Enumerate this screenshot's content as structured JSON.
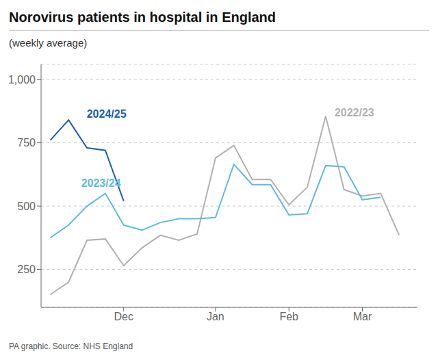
{
  "chart_data": {
    "type": "line",
    "title": "Norovirus patients in hospital in England",
    "subtitle": "(weekly average)",
    "source": "PA graphic. Source: NHS England",
    "xlim": [
      -0.5,
      20.0
    ],
    "xticks": [
      {
        "value": 4,
        "label": "Dec"
      },
      {
        "value": 9,
        "label": "Jan"
      },
      {
        "value": 13,
        "label": "Feb"
      },
      {
        "value": 17,
        "label": "Mar"
      }
    ],
    "ylim": [
      100,
      1060
    ],
    "yticks": [
      250,
      500,
      750,
      {
        "value": 1000,
        "label": "1,000"
      }
    ],
    "grid": "y",
    "series": [
      {
        "name": "2022/23",
        "color": "#b0b0b0",
        "x": [
          0,
          1,
          2,
          3,
          4,
          5,
          6,
          7,
          8,
          9,
          10,
          11,
          12,
          13,
          14,
          15,
          16,
          17,
          18,
          19
        ],
        "values": [
          150,
          200,
          365,
          370,
          265,
          335,
          385,
          365,
          390,
          690,
          740,
          605,
          605,
          505,
          575,
          855,
          565,
          540,
          550,
          385
        ]
      },
      {
        "name": "2023/24",
        "color": "#5bbcdd",
        "x": [
          0,
          1,
          2,
          3,
          4,
          5,
          6,
          7,
          8,
          9,
          10,
          11,
          12,
          13,
          14,
          15,
          16,
          17,
          18
        ],
        "values": [
          375,
          425,
          500,
          550,
          425,
          405,
          435,
          450,
          450,
          455,
          665,
          585,
          585,
          465,
          470,
          660,
          655,
          525,
          535
        ]
      },
      {
        "name": "2024/25",
        "color": "#1a5fa8",
        "x": [
          0,
          1,
          2,
          3,
          4
        ],
        "values": [
          760,
          840,
          730,
          720,
          520
        ]
      }
    ],
    "annotations": [
      {
        "text": "2022/23",
        "x": 15.3,
        "y": 870,
        "color": "#b0b0b0"
      },
      {
        "text": "2023/24",
        "x": 1.5,
        "y": 590,
        "color": "#5bbcdd"
      },
      {
        "text": "2024/25",
        "x": 1.8,
        "y": 865,
        "color": "#1a5fa8"
      }
    ]
  }
}
